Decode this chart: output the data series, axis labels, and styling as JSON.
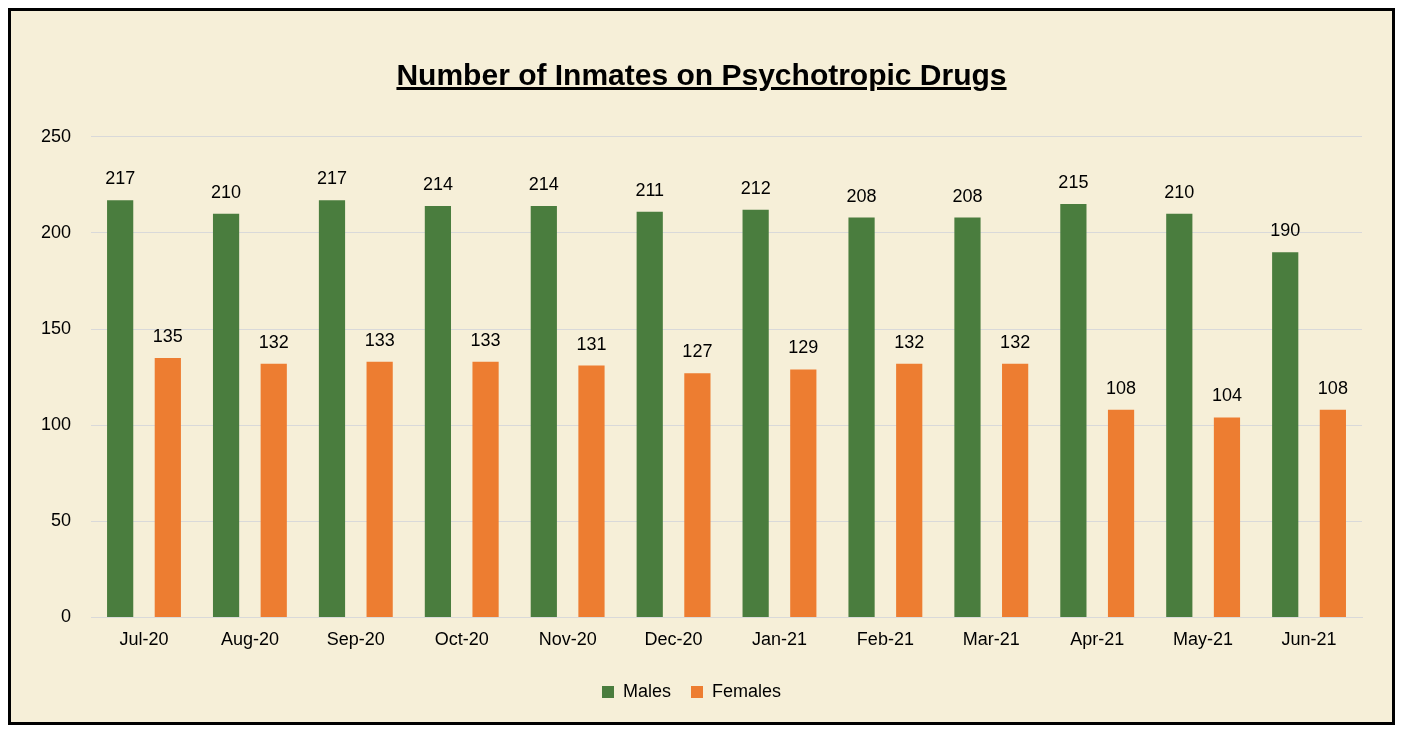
{
  "chart_data": {
    "type": "bar",
    "title": "Number of Inmates on Psychotropic Drugs",
    "categories": [
      "Jul-20",
      "Aug-20",
      "Sep-20",
      "Oct-20",
      "Nov-20",
      "Dec-20",
      "Jan-21",
      "Feb-21",
      "Mar-21",
      "Apr-21",
      "May-21",
      "Jun-21"
    ],
    "series": [
      {
        "name": "Males",
        "color": "#4a7d3e",
        "values": [
          217,
          210,
          217,
          214,
          214,
          211,
          212,
          208,
          208,
          215,
          210,
          190
        ]
      },
      {
        "name": "Females",
        "color": "#ed7d31",
        "values": [
          135,
          132,
          133,
          133,
          131,
          127,
          129,
          132,
          132,
          108,
          104,
          108
        ]
      }
    ],
    "ylim": [
      0,
      250
    ],
    "yticks": [
      0,
      50,
      100,
      150,
      200,
      250
    ],
    "grid": "y",
    "legend": "bottom",
    "data_labels": true
  }
}
